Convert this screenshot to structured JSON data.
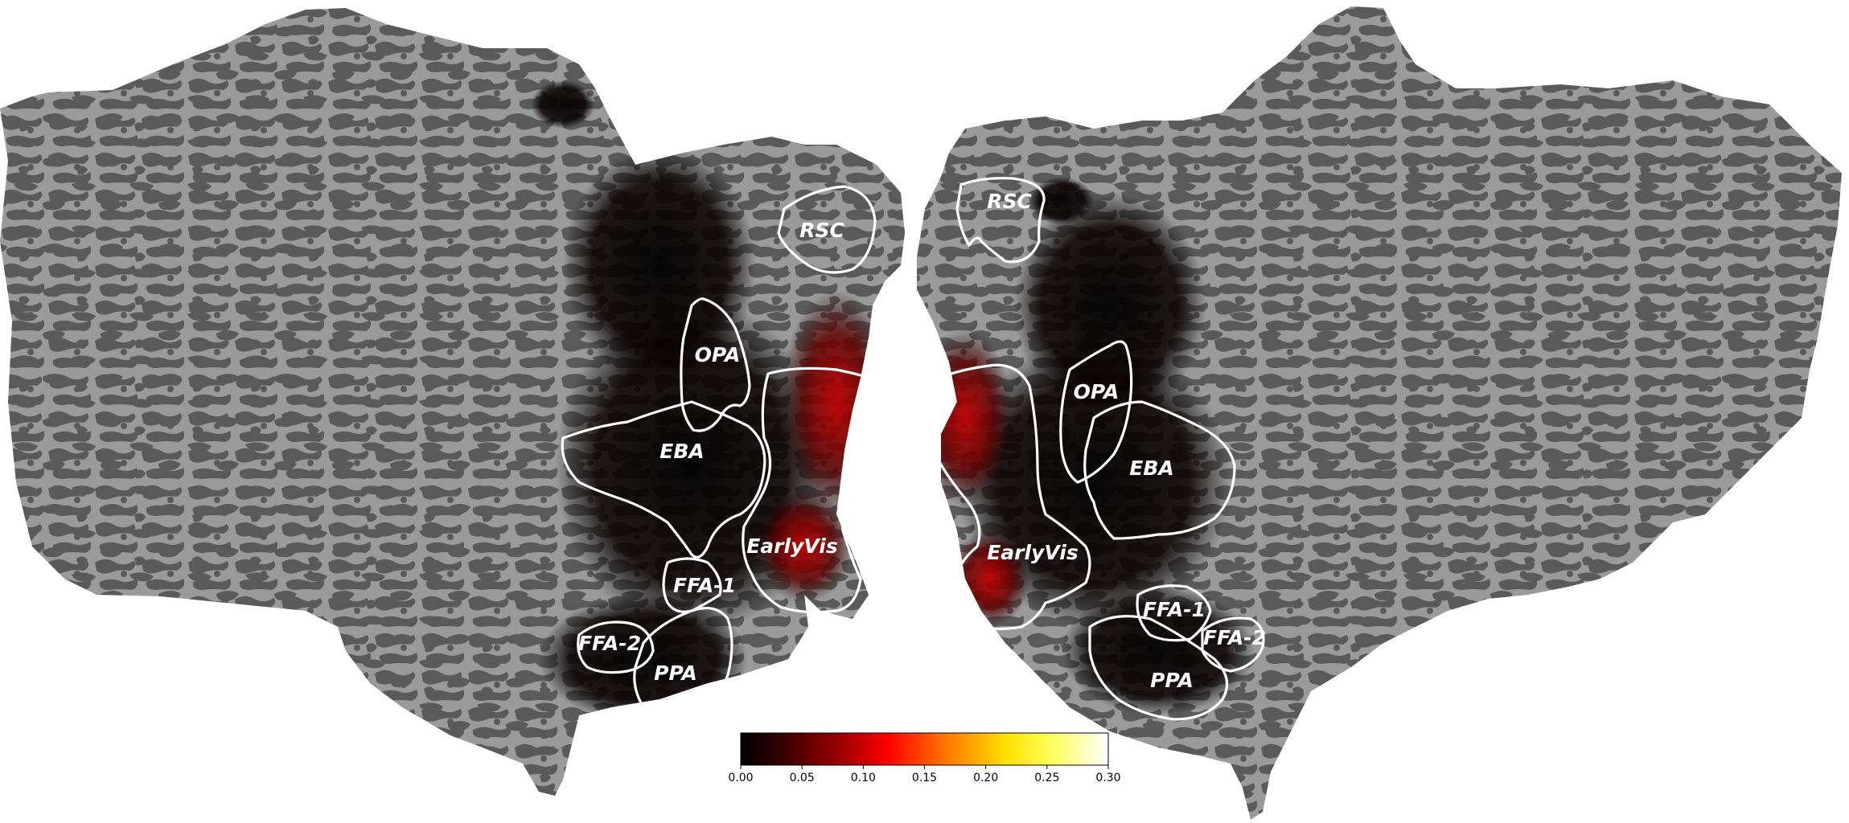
{
  "hemispheres": [
    {
      "side": "left",
      "rois": [
        {
          "id": "rsc",
          "label": "RSC"
        },
        {
          "id": "opa",
          "label": "OPA"
        },
        {
          "id": "eba",
          "label": "EBA"
        },
        {
          "id": "earlyvis",
          "label": "EarlyVis"
        },
        {
          "id": "ffa1",
          "label": "FFA-1"
        },
        {
          "id": "ffa2",
          "label": "FFA-2"
        },
        {
          "id": "ppa",
          "label": "PPA"
        }
      ]
    },
    {
      "side": "right",
      "rois": [
        {
          "id": "rsc",
          "label": "RSC"
        },
        {
          "id": "opa",
          "label": "OPA"
        },
        {
          "id": "eba",
          "label": "EBA"
        },
        {
          "id": "earlyvis",
          "label": "EarlyVis"
        },
        {
          "id": "ffa1",
          "label": "FFA-1"
        },
        {
          "id": "ffa2",
          "label": "FFA-2"
        },
        {
          "id": "ppa",
          "label": "PPA"
        }
      ]
    }
  ],
  "colorbar": {
    "colormap": "hot",
    "range": [
      0.0,
      0.3
    ],
    "ticks": [
      "0.00",
      "0.05",
      "0.10",
      "0.15",
      "0.20",
      "0.25",
      "0.30"
    ],
    "colors": [
      "#000000",
      "#5a0000",
      "#b30000",
      "#ff1a00",
      "#ff7a00",
      "#ffd200",
      "#ffff4d",
      "#ffffff"
    ]
  },
  "colors": {
    "gyri": "#9a9a9a",
    "sulci": "#5a5a5a",
    "outline": "#ffffff"
  }
}
